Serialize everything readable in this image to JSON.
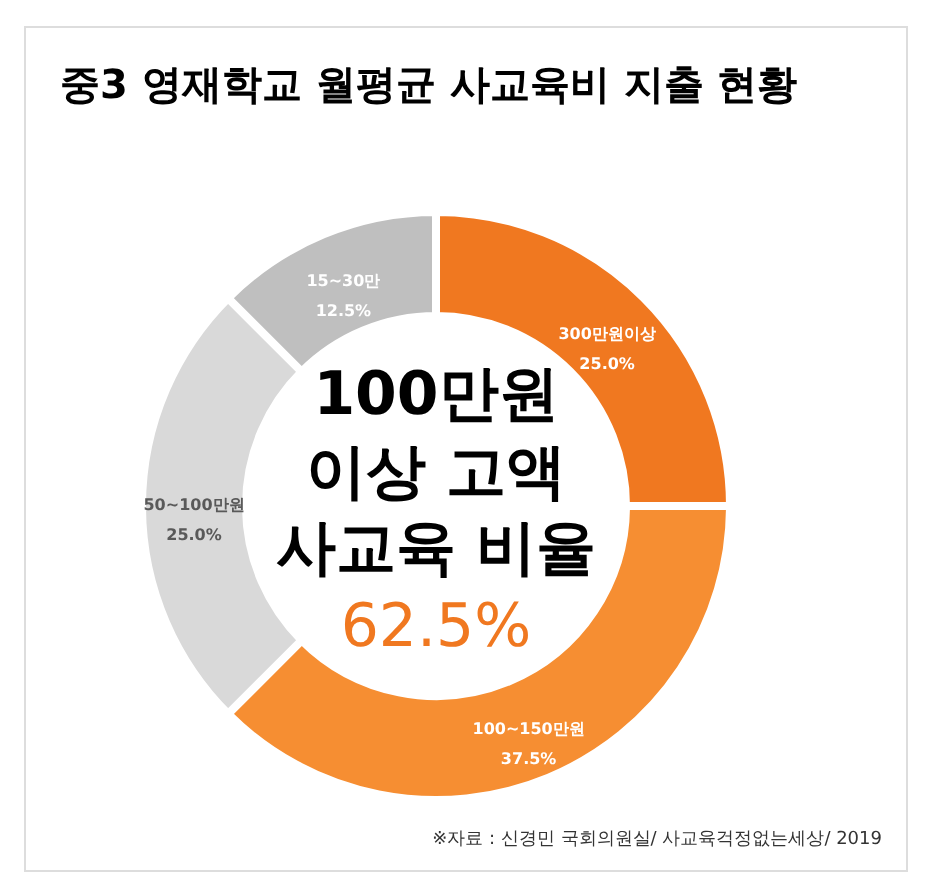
{
  "chart_data": {
    "type": "donut",
    "title": "중3 영재학교 월평균 사교육비 지출 현황",
    "categories": [
      "300만원이상",
      "100~150만원",
      "50~100만원",
      "15~30만"
    ],
    "values": [
      25.0,
      37.5,
      25.0,
      12.5
    ],
    "value_labels": [
      "25.0%",
      "37.5%",
      "25.0%",
      "12.5%"
    ],
    "colors": [
      "#f07820",
      "#f68e32",
      "#d9d9d9",
      "#bfbfbf"
    ],
    "annotations": [
      "100만원",
      "이상 고액",
      "사교육 비율",
      "62.5%",
      "※자료 : 신경민 국회의원실/ 사교육걱정없는세상/ 2019"
    ],
    "legend": false
  }
}
